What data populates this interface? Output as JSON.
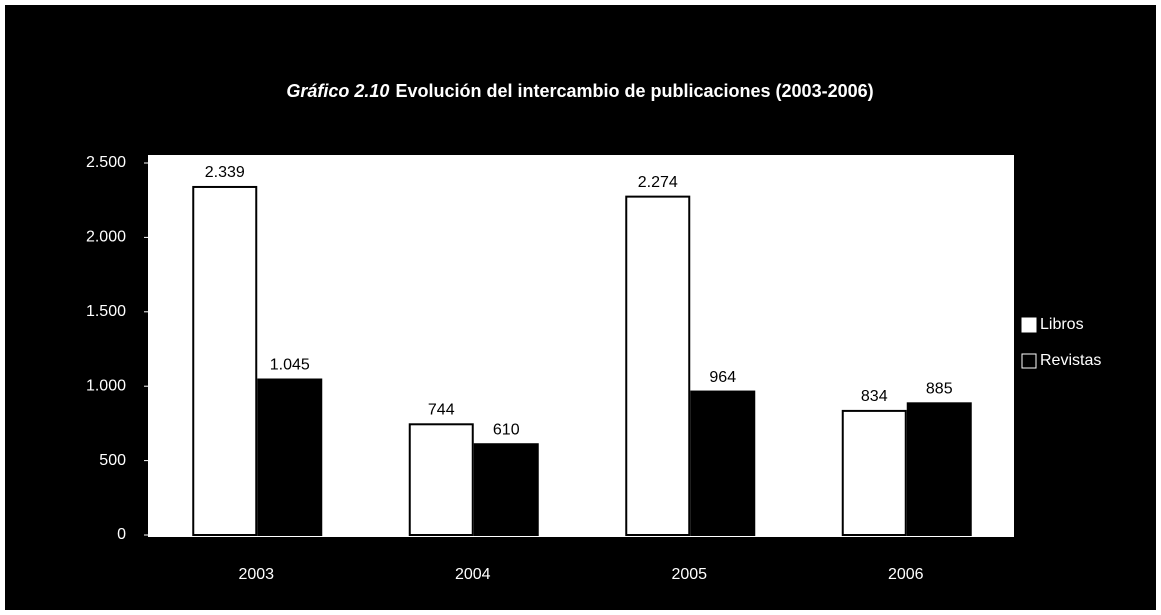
{
  "chart_data": {
    "type": "bar",
    "title_label": "Gráfico 2.10",
    "title": "Evolución del intercambio de publicaciones (2003-2006)",
    "categories": [
      "2003",
      "2004",
      "2005",
      "2006"
    ],
    "series": [
      {
        "name": "Libros",
        "color": "#ffffff",
        "values": [
          2339,
          744,
          2274,
          834
        ],
        "value_labels": [
          "2.339",
          "744",
          "2.274",
          "834"
        ]
      },
      {
        "name": "Revistas",
        "color": "#000000",
        "values": [
          1045,
          610,
          964,
          885
        ],
        "value_labels": [
          "1.045",
          "610",
          "964",
          "885"
        ]
      }
    ],
    "ylim": [
      0,
      2500
    ],
    "yticks": [
      0,
      {
        "value": 500,
        "label": "500"
      },
      {
        "value": 1000,
        "label": "1.000"
      },
      {
        "value": 1500,
        "label": "1.500"
      },
      {
        "value": 2000,
        "label": "2.000"
      },
      {
        "value": 2500,
        "label": "2.500"
      }
    ],
    "legend": "right"
  }
}
